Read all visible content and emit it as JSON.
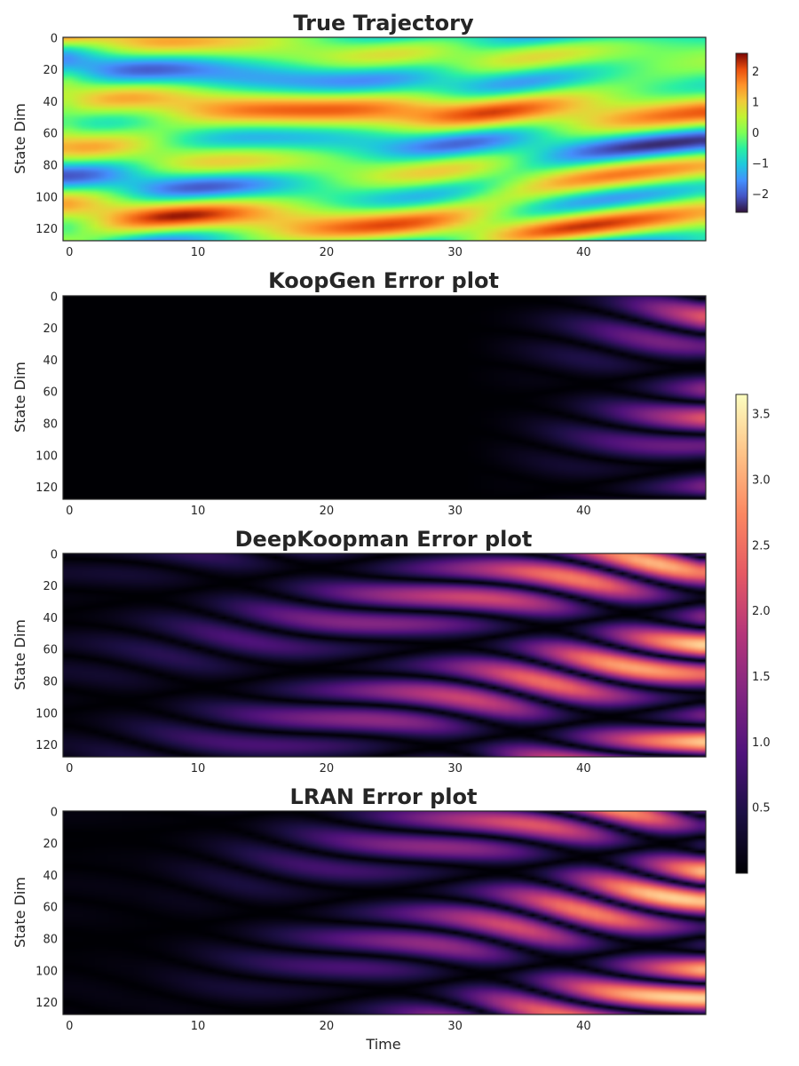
{
  "chart_data": [
    {
      "type": "heatmap",
      "title": "True Trajectory",
      "xlabel": "",
      "ylabel": "State Dim",
      "xlim": [
        0,
        50
      ],
      "ylim": [
        128,
        0
      ],
      "xticks": [
        "0",
        "10",
        "20",
        "30",
        "40"
      ],
      "yticks": [
        "0",
        "20",
        "40",
        "60",
        "80",
        "100",
        "120"
      ],
      "colormap": "turbo",
      "value_range": [
        -2.6,
        2.6
      ],
      "colorbar_ticks": [
        "2",
        "1",
        "0",
        "−1",
        "−2"
      ]
    },
    {
      "type": "heatmap",
      "title": "KoopGen Error plot",
      "xlabel": "",
      "ylabel": "State Dim",
      "xlim": [
        0,
        50
      ],
      "ylim": [
        128,
        0
      ],
      "xticks": [
        "0",
        "10",
        "20",
        "30",
        "40"
      ],
      "yticks": [
        "0",
        "20",
        "40",
        "60",
        "80",
        "100",
        "120"
      ],
      "colormap": "magma",
      "value_range": [
        0,
        3.65
      ]
    },
    {
      "type": "heatmap",
      "title": "DeepKoopman Error plot",
      "xlabel": "",
      "ylabel": "State Dim",
      "xlim": [
        0,
        50
      ],
      "ylim": [
        128,
        0
      ],
      "xticks": [
        "0",
        "10",
        "20",
        "30",
        "40"
      ],
      "yticks": [
        "0",
        "20",
        "40",
        "60",
        "80",
        "100",
        "120"
      ],
      "colormap": "magma",
      "value_range": [
        0,
        3.65
      ]
    },
    {
      "type": "heatmap",
      "title": "LRAN Error plot",
      "xlabel": "Time",
      "ylabel": "State Dim",
      "xlim": [
        0,
        50
      ],
      "ylim": [
        128,
        0
      ],
      "xticks": [
        "0",
        "10",
        "20",
        "30",
        "40"
      ],
      "yticks": [
        "0",
        "20",
        "40",
        "60",
        "80",
        "100",
        "120"
      ],
      "colormap": "magma",
      "value_range": [
        0,
        3.65
      ],
      "colorbar_ticks": [
        "3.5",
        "3.0",
        "2.5",
        "2.0",
        "1.5",
        "1.0",
        "0.5"
      ]
    }
  ]
}
